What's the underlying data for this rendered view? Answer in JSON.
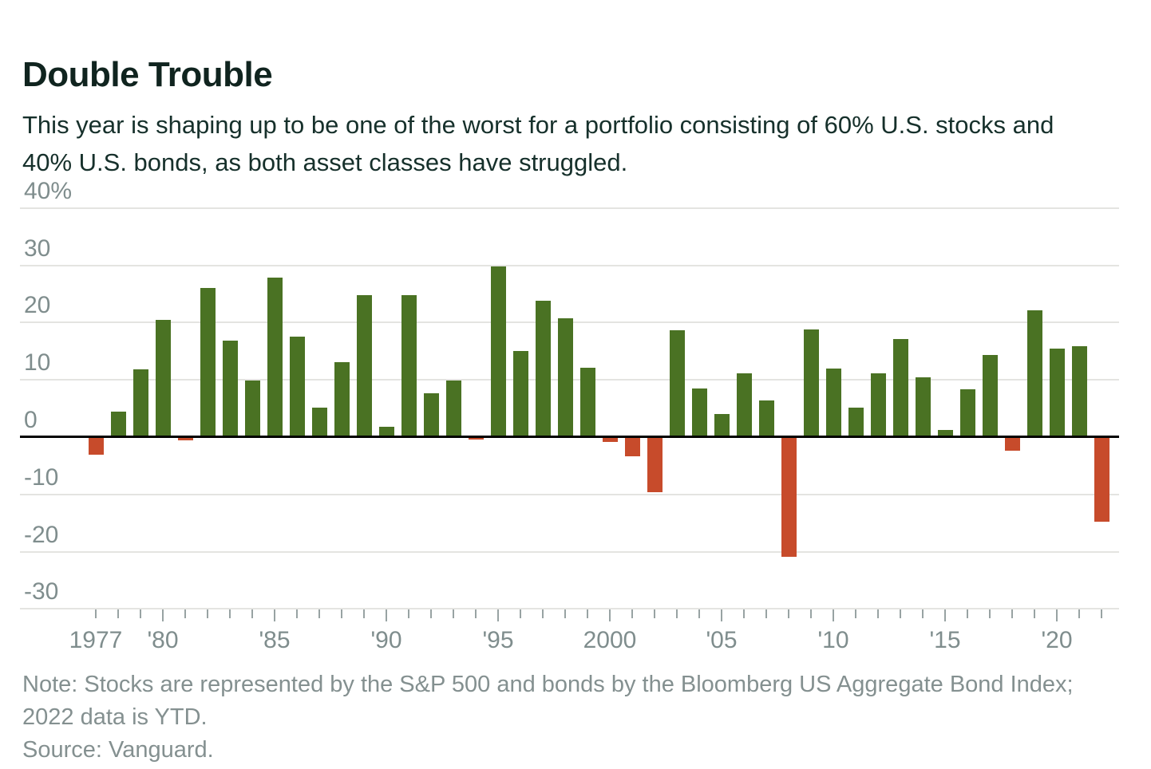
{
  "header": {
    "title": "Double Trouble",
    "subtitle": "This year is shaping up to be one of the worst for a portfolio consisting of 60% U.S. stocks and 40% U.S. bonds, as both asset classes have struggled."
  },
  "footer": {
    "note": "Note: Stocks are represented by the S&P 500 and bonds by the Bloomberg US Aggregate Bond Index; 2022 data is YTD.",
    "source": "Source: Vanguard."
  },
  "chart_data": {
    "type": "bar",
    "title": "Double Trouble",
    "xlabel": "",
    "ylabel": "",
    "unit": "%",
    "grid": true,
    "ylim": [
      -33,
      42
    ],
    "positive_color": "#4a7223",
    "negative_color": "#c74b2b",
    "x": [
      1977,
      1978,
      1979,
      1980,
      1981,
      1982,
      1983,
      1984,
      1985,
      1986,
      1987,
      1988,
      1989,
      1990,
      1991,
      1992,
      1993,
      1994,
      1995,
      1996,
      1997,
      1998,
      1999,
      2000,
      2001,
      2002,
      2003,
      2004,
      2005,
      2006,
      2007,
      2008,
      2009,
      2010,
      2011,
      2012,
      2013,
      2014,
      2015,
      2016,
      2017,
      2018,
      2019,
      2020,
      2021,
      2022
    ],
    "values": [
      -3.1,
      4.5,
      11.8,
      20.5,
      -0.5,
      26.0,
      16.8,
      9.9,
      27.9,
      17.5,
      5.2,
      13.1,
      24.8,
      1.8,
      24.8,
      7.7,
      9.9,
      -0.4,
      29.8,
      15.0,
      23.8,
      20.8,
      12.1,
      -0.8,
      -3.4,
      -9.6,
      18.6,
      8.5,
      4.0,
      11.2,
      6.4,
      -20.9,
      18.8,
      12.0,
      5.2,
      11.2,
      17.1,
      10.5,
      1.3,
      8.3,
      14.3,
      -2.3,
      22.1,
      15.5,
      15.9,
      -14.7
    ],
    "y_ticks": [
      {
        "label": "40%",
        "value": 40
      },
      {
        "label": "30",
        "value": 30
      },
      {
        "label": "20",
        "value": 20
      },
      {
        "label": "10",
        "value": 10
      },
      {
        "label": "0",
        "value": 0
      },
      {
        "label": "-10",
        "value": -10
      },
      {
        "label": "-20",
        "value": -20
      },
      {
        "label": "-30",
        "value": -30
      }
    ],
    "x_ticks": [
      {
        "label": "1977",
        "year": 1977
      },
      {
        "label": "'80",
        "year": 1980
      },
      {
        "label": "'85",
        "year": 1985
      },
      {
        "label": "'90",
        "year": 1990
      },
      {
        "label": "'95",
        "year": 1995
      },
      {
        "label": "2000",
        "year": 2000
      },
      {
        "label": "'05",
        "year": 2005
      },
      {
        "label": "'10",
        "year": 2010
      },
      {
        "label": "'15",
        "year": 2015
      },
      {
        "label": "'20",
        "year": 2020
      }
    ]
  }
}
